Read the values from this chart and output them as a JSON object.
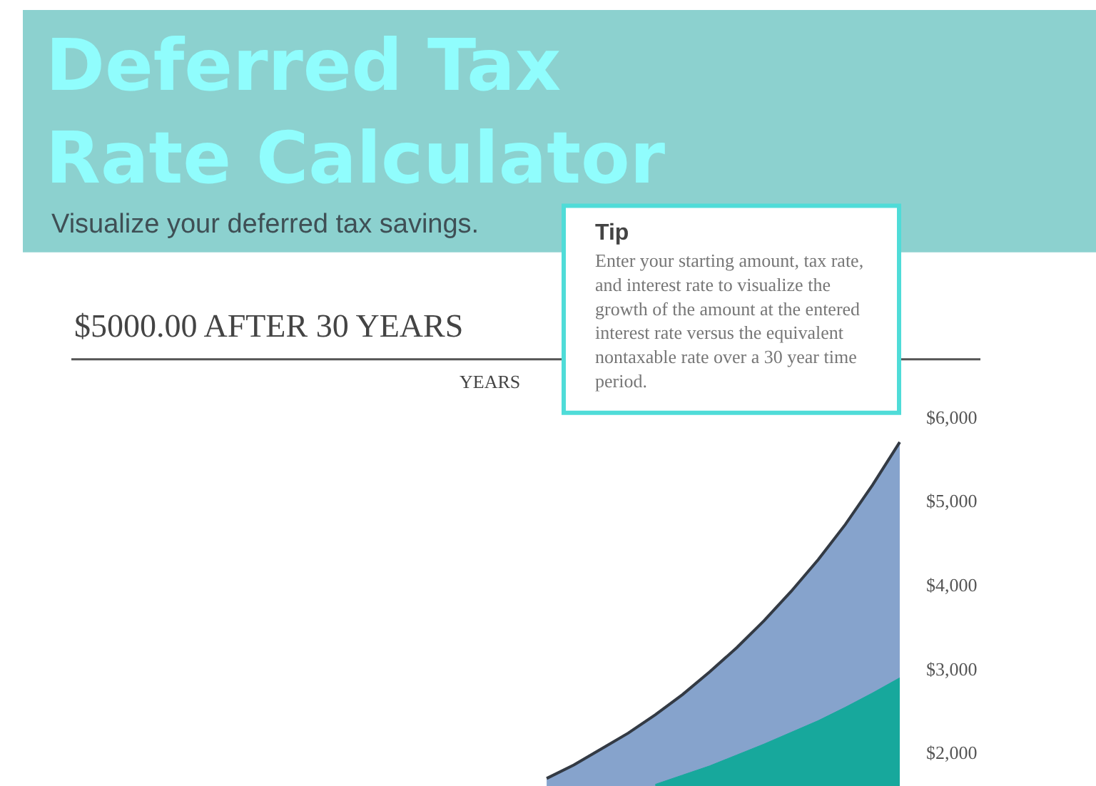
{
  "chart_data": {
    "type": "area",
    "title": "$5000.00 AFTER 30 YEARS",
    "annotations": [
      "Deferred Tax Rate Calculator",
      "Visualize your deferred tax savings.",
      "YEARS",
      "Tip",
      "Enter your starting amount, tax rate, and interest rate to visualize the growth of the amount at the entered interest rate versus the equivalent nontaxable rate over a 30 year time period."
    ],
    "categories": [
      null,
      null,
      null,
      null,
      null,
      null,
      null,
      null,
      null,
      null,
      null,
      null,
      null,
      null,
      null,
      null,
      null,
      null,
      null,
      null,
      null,
      null,
      null,
      null,
      null,
      null,
      null,
      null,
      null,
      null,
      null
    ],
    "series": [
      {
        "color": "#86a3cc",
        "values": [
          null,
          null,
          null,
          null,
          null,
          null,
          null,
          null,
          null,
          null,
          null,
          null,
          null,
          null,
          null,
          null,
          null,
          1690,
          1850,
          2040,
          2230,
          2450,
          2690,
          2960,
          3250,
          3570,
          3920,
          4300,
          4720,
          5190,
          5700
        ]
      },
      {
        "color": "#17a89c",
        "values": [
          null,
          null,
          null,
          null,
          null,
          null,
          null,
          null,
          null,
          null,
          null,
          null,
          null,
          null,
          null,
          null,
          null,
          null,
          null,
          null,
          null,
          1620,
          1730,
          1840,
          1970,
          2100,
          2240,
          2380,
          2540,
          2710,
          2890
        ]
      }
    ],
    "ylim": [
      1600,
      6000
    ],
    "yticks": [
      {
        "value": 2000,
        "label": "$2,000"
      },
      {
        "value": 3000,
        "label": "$3,000"
      },
      {
        "value": 4000,
        "label": "$4,000"
      },
      {
        "value": 5000,
        "label": "$5,000"
      },
      {
        "value": 6000,
        "label": "$6,000"
      }
    ],
    "tick_labels": "y"
  }
}
